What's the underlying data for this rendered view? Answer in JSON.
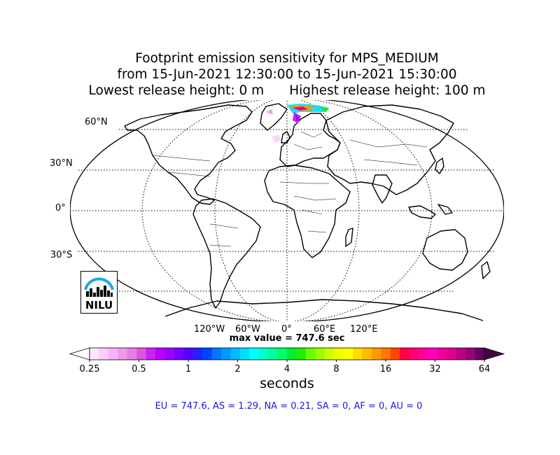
{
  "title": {
    "line1": "Footprint emission sensitivity for MPS_MEDIUM",
    "line2": "from 15-Jun-2021 12:30:00 to 15-Jun-2021 15:30:00",
    "lowest": "Lowest release height: 0 m",
    "highest": "Highest release height: 100 m"
  },
  "map": {
    "projection": "Robinson",
    "lat_labels": [
      "60°N",
      "30°N",
      "0°",
      "30°S"
    ],
    "lon_labels": [
      "120°W",
      "60°W",
      "0°",
      "60°E",
      "120°E"
    ],
    "max_value_text": "max value = 747.6 sec",
    "logo_text": "NILU"
  },
  "colorbar": {
    "tick_labels": [
      "0.25",
      "0.5",
      "1",
      "2",
      "4",
      "8",
      "16",
      "32",
      "64"
    ],
    "units": "seconds",
    "colors": [
      "#ffe6ff",
      "#ffccff",
      "#f7b3f7",
      "#ee99ee",
      "#e67ee6",
      "#dd55dd",
      "#cc22ee",
      "#bb00ff",
      "#9900ff",
      "#7700ff",
      "#5500ff",
      "#2222ff",
      "#0044ff",
      "#0077ff",
      "#0099ff",
      "#00bbff",
      "#00ddff",
      "#00ffff",
      "#00ffcc",
      "#00ff99",
      "#00ff66",
      "#00ee33",
      "#22ee00",
      "#66ff00",
      "#99ff00",
      "#ccff00",
      "#eeff00",
      "#ffff00",
      "#ffdd00",
      "#ffbb00",
      "#ff9900",
      "#ff7700",
      "#ff4400",
      "#ff0044",
      "#ff0077",
      "#ff0099",
      "#ff00bb",
      "#ee0099",
      "#dd0088",
      "#bb0088",
      "#990077",
      "#660066"
    ]
  },
  "regions": {
    "text": "EU = 747.6,  AS = 1.29,  NA = 0.21,  SA = 0,  AF = 0,  AU = 0"
  }
}
